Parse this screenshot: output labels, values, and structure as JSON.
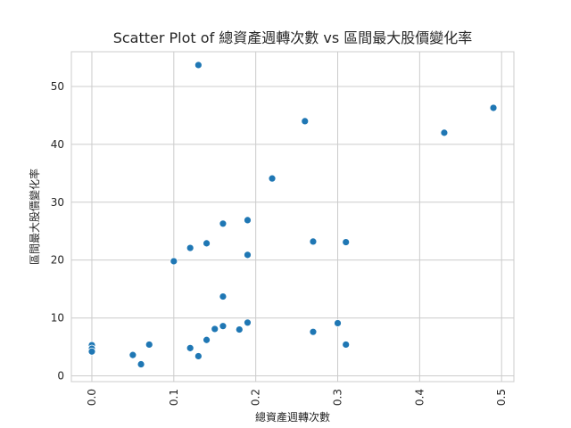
{
  "chart_data": {
    "type": "scatter",
    "title": "Scatter Plot of 總資產週轉次數 vs 區間最大股價變化率",
    "xlabel": "總資產週轉次數",
    "ylabel": "區間最大股價變化率",
    "xlim": [
      -0.025,
      0.515
    ],
    "ylim": [
      -1,
      56
    ],
    "xticks": [
      "0.0",
      "0.1",
      "0.2",
      "0.3",
      "0.4",
      "0.5"
    ],
    "yticks": [
      "0",
      "10",
      "20",
      "30",
      "40",
      "50"
    ],
    "grid": true,
    "marker_color": "#1f77b4",
    "points": [
      {
        "x": 0.0,
        "y": 5.3
      },
      {
        "x": 0.0,
        "y": 4.7
      },
      {
        "x": 0.0,
        "y": 4.2
      },
      {
        "x": 0.05,
        "y": 3.6
      },
      {
        "x": 0.06,
        "y": 2.0
      },
      {
        "x": 0.07,
        "y": 5.4
      },
      {
        "x": 0.1,
        "y": 19.8
      },
      {
        "x": 0.12,
        "y": 22.1
      },
      {
        "x": 0.12,
        "y": 4.8
      },
      {
        "x": 0.13,
        "y": 3.4
      },
      {
        "x": 0.13,
        "y": 53.7
      },
      {
        "x": 0.14,
        "y": 22.9
      },
      {
        "x": 0.14,
        "y": 6.2
      },
      {
        "x": 0.15,
        "y": 8.1
      },
      {
        "x": 0.16,
        "y": 8.6
      },
      {
        "x": 0.16,
        "y": 13.7
      },
      {
        "x": 0.16,
        "y": 26.3
      },
      {
        "x": 0.18,
        "y": 8.0
      },
      {
        "x": 0.19,
        "y": 9.2
      },
      {
        "x": 0.19,
        "y": 20.9
      },
      {
        "x": 0.19,
        "y": 26.9
      },
      {
        "x": 0.22,
        "y": 34.1
      },
      {
        "x": 0.26,
        "y": 44.0
      },
      {
        "x": 0.27,
        "y": 23.2
      },
      {
        "x": 0.27,
        "y": 7.6
      },
      {
        "x": 0.3,
        "y": 9.1
      },
      {
        "x": 0.31,
        "y": 23.1
      },
      {
        "x": 0.31,
        "y": 5.4
      },
      {
        "x": 0.43,
        "y": 42.0
      },
      {
        "x": 0.49,
        "y": 46.3
      }
    ]
  }
}
